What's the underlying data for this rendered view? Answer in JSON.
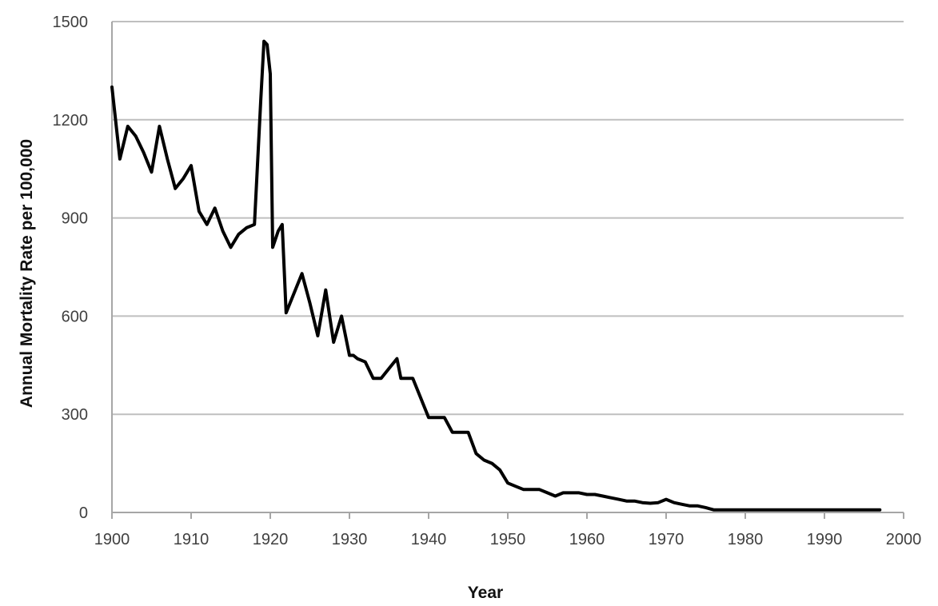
{
  "chart_data": {
    "type": "line",
    "title": "",
    "xlabel": "Year",
    "ylabel": "Annual Mortality Rate per 100,000",
    "xlim": [
      1900,
      2000
    ],
    "ylim": [
      0,
      1500
    ],
    "xticks": [
      "1900",
      "1910",
      "1920",
      "1930",
      "1940",
      "1950",
      "1960",
      "1970",
      "1980",
      "1990",
      "2000"
    ],
    "yticks": [
      "0",
      "300",
      "600",
      "900",
      "1200",
      "1500"
    ],
    "grid": "horizontal",
    "legend": "none",
    "colors": {
      "line": "#000000",
      "grid": "#bfbfbf",
      "axis": "#a6a6a6"
    },
    "series": [
      {
        "x": [
          1900,
          1901,
          1902,
          1903,
          1904,
          1905,
          1906,
          1907,
          1908,
          1909,
          1910,
          1911,
          1912,
          1913,
          1914,
          1915,
          1916,
          1917,
          1918,
          1918.8,
          1919.2,
          1919.6,
          1920,
          1920.3,
          1921,
          1921.5,
          1922,
          1923,
          1924,
          1925,
          1926,
          1927,
          1928,
          1929,
          1930,
          1930.5,
          1931,
          1932,
          1933,
          1934,
          1935,
          1936,
          1936.5,
          1937,
          1938,
          1939,
          1940,
          1941,
          1942,
          1943,
          1944,
          1945,
          1946,
          1947,
          1948,
          1949,
          1950,
          1951,
          1952,
          1953,
          1954,
          1955,
          1956,
          1957,
          1958,
          1959,
          1960,
          1961,
          1962,
          1963,
          1964,
          1965,
          1966,
          1967,
          1968,
          1969,
          1970,
          1971,
          1972,
          1973,
          1974,
          1975,
          1976,
          1977,
          1980,
          1985,
          1990,
          1995,
          1997
        ],
        "values": [
          1300,
          1080,
          1180,
          1150,
          1100,
          1040,
          1180,
          1080,
          990,
          1020,
          1060,
          920,
          880,
          930,
          860,
          810,
          850,
          870,
          880,
          1260,
          1440,
          1430,
          1340,
          810,
          860,
          880,
          610,
          670,
          730,
          640,
          540,
          680,
          520,
          600,
          480,
          480,
          470,
          460,
          410,
          410,
          440,
          470,
          410,
          410,
          410,
          350,
          290,
          290,
          290,
          245,
          245,
          245,
          180,
          160,
          150,
          130,
          90,
          80,
          70,
          70,
          70,
          60,
          50,
          60,
          60,
          60,
          55,
          55,
          50,
          45,
          40,
          35,
          35,
          30,
          28,
          30,
          40,
          30,
          25,
          20,
          20,
          15,
          8,
          8,
          8,
          8,
          8,
          8,
          8
        ]
      }
    ]
  }
}
